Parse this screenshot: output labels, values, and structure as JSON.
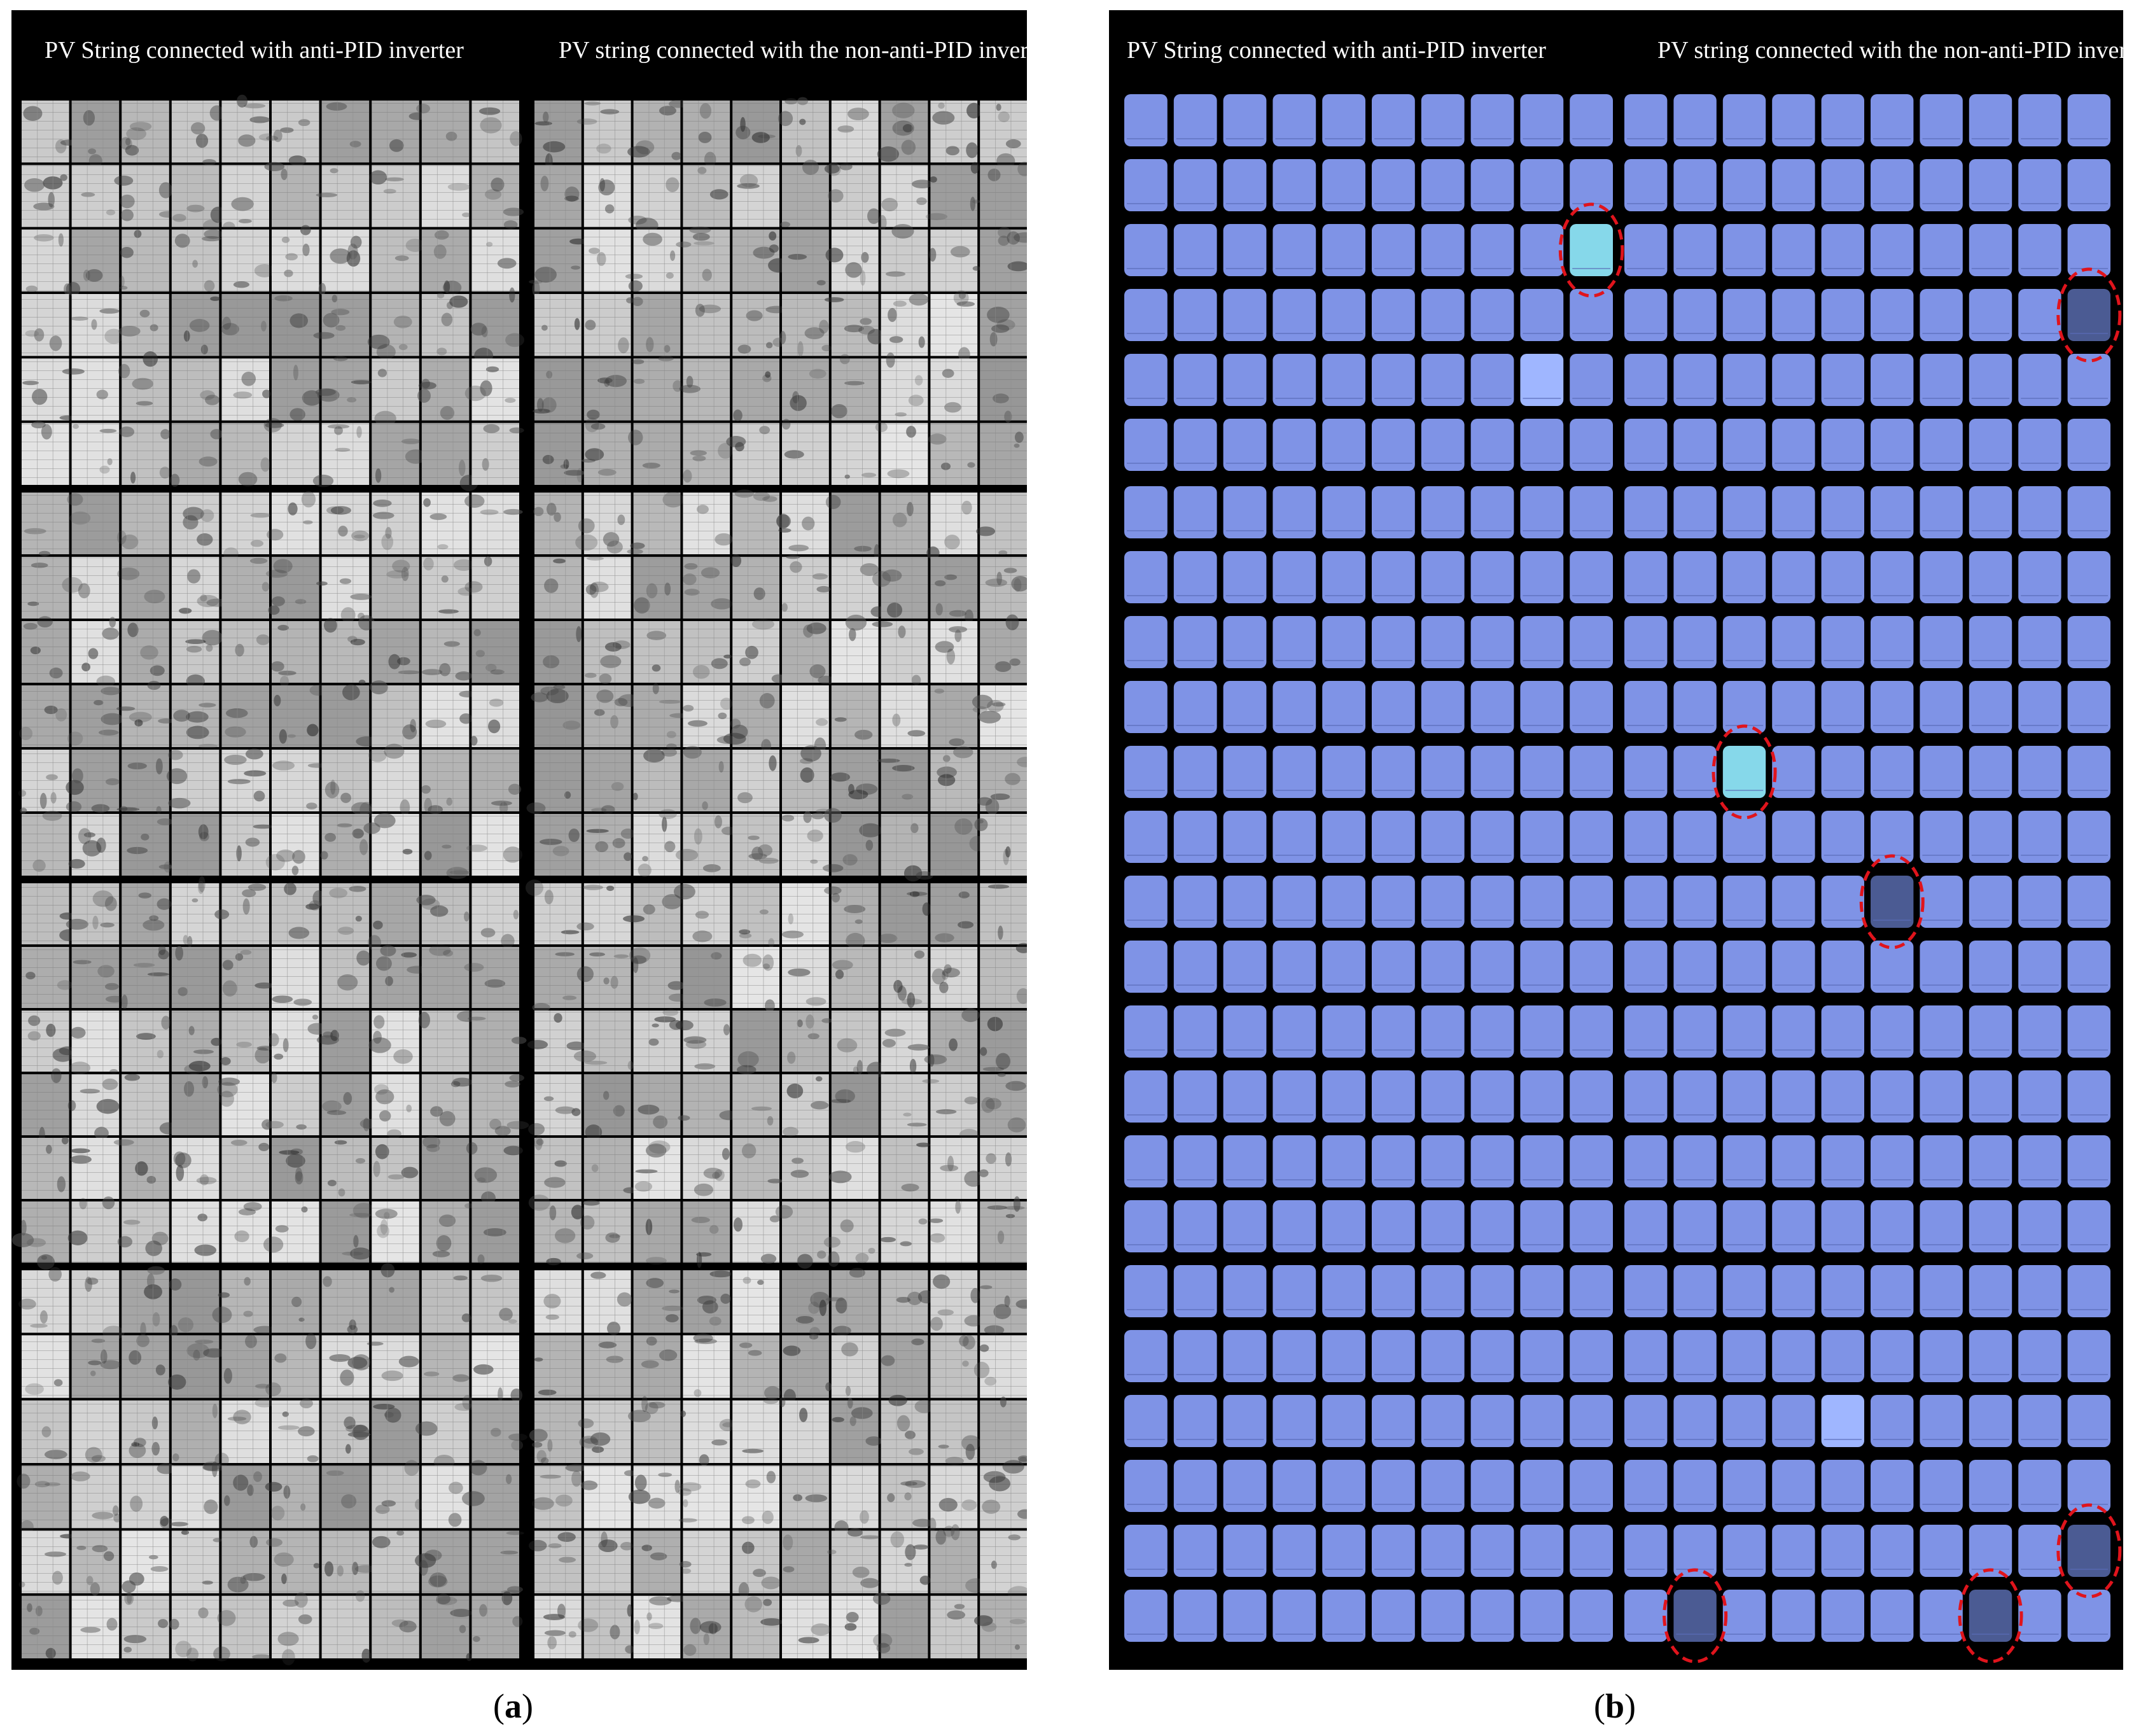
{
  "panel_a": {
    "title_left": "PV String connected with anti-PID inverter",
    "title_right": "PV string connected with the non-anti-PID inverter",
    "caption_letter": "a"
  },
  "panel_b": {
    "title_left": "PV String connected with anti-PID inverter",
    "title_right": "PV string connected with the non-anti-PID inverter",
    "caption_letter": "b"
  },
  "colors": {
    "frame": "#000000",
    "cell_normal": "#7f93e6",
    "cell_light": "#86d8ea",
    "cell_pale": "#9fb6ff",
    "cell_dark": "#4b5b93",
    "highlight_ring": "#e0141c",
    "el_base": "#b8b8b8"
  }
}
